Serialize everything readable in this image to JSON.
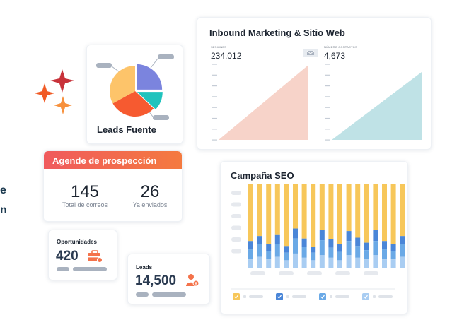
{
  "edge_fragments": [
    "e",
    "n"
  ],
  "leads_fuente": {
    "title": "Leads Fuente",
    "slices": [
      {
        "name": "purple",
        "value": 25,
        "color": "#7b84de"
      },
      {
        "name": "teal",
        "value": 12,
        "color": "#1fc3bd"
      },
      {
        "name": "orange",
        "value": 30,
        "color": "#f65a30"
      },
      {
        "name": "yellow",
        "value": 33,
        "color": "#fdc46a"
      }
    ]
  },
  "inbound": {
    "title": "Inbound Marketing & Sitio Web",
    "left_metric": {
      "label": "SESIONES",
      "value": "234,012",
      "color": "#f7d3c9"
    },
    "right_metric": {
      "label": "NÚMERO CONTACTOS",
      "value": "4,673",
      "color": "#bfe2e6"
    }
  },
  "agenda": {
    "title": "Agende de prospección",
    "stat1": {
      "value": "145",
      "label": "Total de correos"
    },
    "stat2": {
      "value": "26",
      "label": "Ya enviados"
    }
  },
  "oportunidades": {
    "label": "Oportunidades",
    "value": "420",
    "icon_color": "#f4724a"
  },
  "leads": {
    "label": "Leads",
    "value": "14,500",
    "icon_color": "#f4724a"
  },
  "seo": {
    "title": "Campaña SEO",
    "colors": [
      "#f7c75a",
      "#4a86d8",
      "#6aa9e6",
      "#a9cdf2"
    ],
    "bars": [
      [
        0.68,
        0.1,
        0.12,
        0.1
      ],
      [
        0.62,
        0.1,
        0.15,
        0.13
      ],
      [
        0.72,
        0.08,
        0.1,
        0.1
      ],
      [
        0.6,
        0.12,
        0.15,
        0.13
      ],
      [
        0.74,
        0.08,
        0.09,
        0.09
      ],
      [
        0.53,
        0.12,
        0.18,
        0.17
      ],
      [
        0.65,
        0.1,
        0.13,
        0.12
      ],
      [
        0.75,
        0.07,
        0.09,
        0.09
      ],
      [
        0.55,
        0.12,
        0.18,
        0.15
      ],
      [
        0.66,
        0.1,
        0.12,
        0.12
      ],
      [
        0.72,
        0.09,
        0.1,
        0.09
      ],
      [
        0.56,
        0.12,
        0.17,
        0.15
      ],
      [
        0.64,
        0.1,
        0.14,
        0.12
      ],
      [
        0.7,
        0.09,
        0.11,
        0.1
      ],
      [
        0.55,
        0.13,
        0.17,
        0.15
      ],
      [
        0.68,
        0.1,
        0.12,
        0.1
      ],
      [
        0.72,
        0.08,
        0.1,
        0.1
      ],
      [
        0.62,
        0.1,
        0.15,
        0.13
      ]
    ]
  }
}
